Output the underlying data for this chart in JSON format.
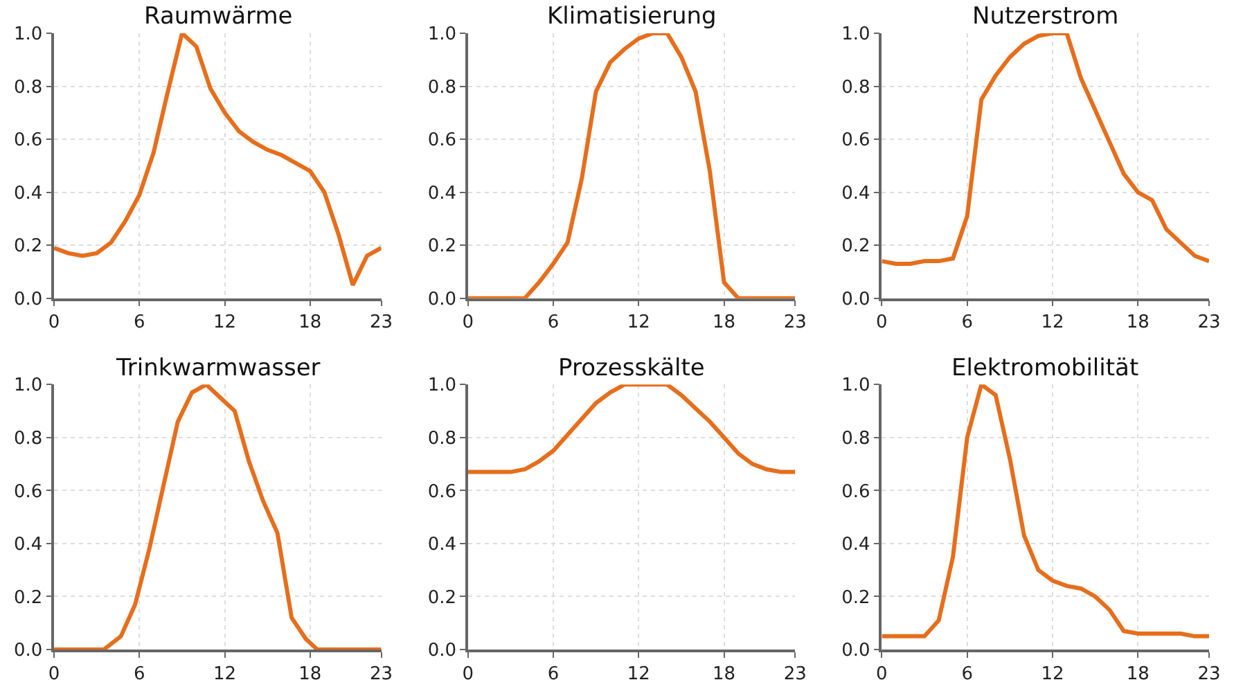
{
  "chart_data": [
    {
      "type": "line",
      "title": "Raumwärme",
      "x": [
        0,
        1,
        2,
        3,
        4,
        5,
        6,
        7,
        8,
        9,
        10,
        11,
        12,
        13,
        14,
        15,
        16,
        17,
        18,
        19,
        20,
        21,
        22,
        23
      ],
      "xlim": [
        0,
        23
      ],
      "xticks": [
        0,
        6,
        12,
        18,
        23
      ],
      "ylim": [
        0,
        1
      ],
      "yticks": [
        {
          "value": 0,
          "label": "0.0"
        },
        {
          "value": 0.2,
          "label": "0.2"
        },
        {
          "value": 0.4,
          "label": "0.4"
        },
        {
          "value": 0.6,
          "label": "0.6"
        },
        {
          "value": 0.8,
          "label": "0.8"
        },
        {
          "value": 1,
          "label": "1.0"
        }
      ],
      "grid": true,
      "line_style": "solid",
      "marker": "none",
      "series": [
        {
          "color": "#e66e1c",
          "values": [
            0.19,
            0.17,
            0.16,
            0.17,
            0.21,
            0.29,
            0.39,
            0.55,
            0.78,
            1.0,
            0.95,
            0.79,
            0.7,
            0.63,
            0.59,
            0.56,
            0.54,
            0.51,
            0.48,
            0.4,
            0.24,
            0.05,
            0.16,
            0.19
          ]
        }
      ]
    },
    {
      "type": "line",
      "title": "Klimatisierung",
      "x": [
        0,
        1,
        2,
        3,
        4,
        5,
        6,
        7,
        8,
        9,
        10,
        11,
        12,
        13,
        14,
        15,
        16,
        17,
        18,
        19,
        20,
        21,
        22,
        23
      ],
      "xlim": [
        0,
        23
      ],
      "xticks": [
        0,
        6,
        12,
        18,
        23
      ],
      "ylim": [
        0,
        1
      ],
      "yticks": [
        {
          "value": 0,
          "label": "0.0"
        },
        {
          "value": 0.2,
          "label": "0.2"
        },
        {
          "value": 0.4,
          "label": "0.4"
        },
        {
          "value": 0.6,
          "label": "0.6"
        },
        {
          "value": 0.8,
          "label": "0.8"
        },
        {
          "value": 1,
          "label": "1.0"
        }
      ],
      "grid": true,
      "line_style": "solid",
      "marker": "none",
      "series": [
        {
          "color": "#e66e1c",
          "values": [
            0,
            0,
            0,
            0,
            0,
            0.06,
            0.13,
            0.21,
            0.45,
            0.78,
            0.89,
            0.94,
            0.98,
            1.0,
            1.0,
            0.91,
            0.78,
            0.48,
            0.06,
            0,
            0,
            0,
            0,
            0
          ]
        }
      ]
    },
    {
      "type": "line",
      "title": "Nutzerstrom",
      "x": [
        0,
        1,
        2,
        3,
        4,
        5,
        6,
        7,
        8,
        9,
        10,
        11,
        12,
        13,
        14,
        15,
        16,
        17,
        18,
        19,
        20,
        21,
        22,
        23
      ],
      "xlim": [
        0,
        23
      ],
      "xticks": [
        0,
        6,
        12,
        18,
        23
      ],
      "ylim": [
        0,
        1
      ],
      "yticks": [
        {
          "value": 0,
          "label": "0.0"
        },
        {
          "value": 0.2,
          "label": "0.2"
        },
        {
          "value": 0.4,
          "label": "0.4"
        },
        {
          "value": 0.6,
          "label": "0.6"
        },
        {
          "value": 0.8,
          "label": "0.8"
        },
        {
          "value": 1,
          "label": "1.0"
        }
      ],
      "grid": true,
      "line_style": "solid",
      "marker": "none",
      "series": [
        {
          "color": "#e66e1c",
          "values": [
            0.14,
            0.13,
            0.13,
            0.14,
            0.14,
            0.15,
            0.31,
            0.75,
            0.84,
            0.91,
            0.96,
            0.99,
            1.0,
            1.0,
            0.83,
            0.71,
            0.59,
            0.47,
            0.4,
            0.37,
            0.26,
            0.21,
            0.16,
            0.14
          ]
        }
      ]
    },
    {
      "type": "line",
      "title": "Trinkwarmwasser",
      "x": [
        0,
        3.5,
        4.7,
        5.7,
        6.7,
        7.7,
        8.7,
        9.7,
        10.7,
        11.7,
        12.7,
        13.7,
        14.7,
        15.7,
        16.7,
        17.7,
        18.5,
        23
      ],
      "xlim": [
        0,
        23
      ],
      "xticks": [
        0,
        6,
        12,
        18,
        23
      ],
      "ylim": [
        0,
        1
      ],
      "yticks": [
        {
          "value": 0,
          "label": "0.0"
        },
        {
          "value": 0.2,
          "label": "0.2"
        },
        {
          "value": 0.4,
          "label": "0.4"
        },
        {
          "value": 0.6,
          "label": "0.6"
        },
        {
          "value": 0.8,
          "label": "0.8"
        },
        {
          "value": 1,
          "label": "1.0"
        }
      ],
      "grid": true,
      "line_style": "solid",
      "marker": "none",
      "series": [
        {
          "color": "#e66e1c",
          "values": [
            0,
            0,
            0.05,
            0.17,
            0.38,
            0.62,
            0.86,
            0.97,
            1.0,
            0.95,
            0.9,
            0.71,
            0.56,
            0.44,
            0.12,
            0.04,
            0,
            0
          ]
        }
      ]
    },
    {
      "type": "line",
      "title": "Prozesskälte",
      "x": [
        0,
        1,
        2,
        3,
        4,
        5,
        6,
        7,
        8,
        9,
        10,
        11,
        12,
        13,
        14,
        15,
        16,
        17,
        18,
        19,
        20,
        21,
        22,
        23
      ],
      "xlim": [
        0,
        23
      ],
      "xticks": [
        0,
        6,
        12,
        18,
        23
      ],
      "ylim": [
        0,
        1
      ],
      "yticks": [
        {
          "value": 0,
          "label": "0.0"
        },
        {
          "value": 0.2,
          "label": "0.2"
        },
        {
          "value": 0.4,
          "label": "0.4"
        },
        {
          "value": 0.6,
          "label": "0.6"
        },
        {
          "value": 0.8,
          "label": "0.8"
        },
        {
          "value": 1,
          "label": "1.0"
        }
      ],
      "grid": true,
      "line_style": "solid",
      "marker": "none",
      "series": [
        {
          "color": "#e66e1c",
          "values": [
            0.67,
            0.67,
            0.67,
            0.67,
            0.68,
            0.71,
            0.75,
            0.81,
            0.87,
            0.93,
            0.97,
            1.0,
            1.0,
            1.0,
            1.0,
            0.96,
            0.91,
            0.86,
            0.8,
            0.74,
            0.7,
            0.68,
            0.67,
            0.67
          ]
        }
      ]
    },
    {
      "type": "line",
      "title": "Elektromobilität",
      "x": [
        0,
        1,
        2,
        3,
        4,
        5,
        6,
        7,
        8,
        9,
        10,
        11,
        12,
        13,
        14,
        15,
        16,
        17,
        18,
        19,
        20,
        21,
        22,
        23
      ],
      "xlim": [
        0,
        23
      ],
      "xticks": [
        0,
        6,
        12,
        18,
        23
      ],
      "ylim": [
        0,
        1
      ],
      "yticks": [
        {
          "value": 0,
          "label": "0.0"
        },
        {
          "value": 0.2,
          "label": "0.2"
        },
        {
          "value": 0.4,
          "label": "0.4"
        },
        {
          "value": 0.6,
          "label": "0.6"
        },
        {
          "value": 0.8,
          "label": "0.8"
        },
        {
          "value": 1,
          "label": "1.0"
        }
      ],
      "grid": true,
      "line_style": "solid",
      "marker": "none",
      "series": [
        {
          "color": "#e66e1c",
          "values": [
            0.05,
            0.05,
            0.05,
            0.05,
            0.11,
            0.35,
            0.8,
            1.0,
            0.96,
            0.72,
            0.43,
            0.3,
            0.26,
            0.24,
            0.23,
            0.2,
            0.15,
            0.07,
            0.06,
            0.06,
            0.06,
            0.06,
            0.05,
            0.05
          ]
        }
      ]
    }
  ]
}
